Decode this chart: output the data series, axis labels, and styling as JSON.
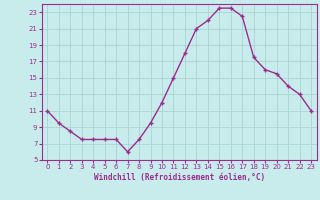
{
  "x": [
    0,
    1,
    2,
    3,
    4,
    5,
    6,
    7,
    8,
    9,
    10,
    11,
    12,
    13,
    14,
    15,
    16,
    17,
    18,
    19,
    20,
    21,
    22,
    23
  ],
  "y": [
    11,
    9.5,
    8.5,
    7.5,
    7.5,
    7.5,
    7.5,
    6,
    7.5,
    9.5,
    12,
    15,
    18,
    21,
    22,
    23.5,
    23.5,
    22.5,
    17.5,
    16,
    15.5,
    14,
    13,
    11
  ],
  "line_color": "#9b2d8e",
  "marker": "+",
  "bg_color": "#c8ecec",
  "grid_color": "#aad4d4",
  "xlabel": "Windchill (Refroidissement éolien,°C)",
  "xlabel_color": "#9b2d8e",
  "tick_color": "#9b2d8e",
  "ylim": [
    5,
    24
  ],
  "xlim": [
    -0.5,
    23.5
  ],
  "yticks": [
    5,
    7,
    9,
    11,
    13,
    15,
    17,
    19,
    21,
    23
  ],
  "xticks": [
    0,
    1,
    2,
    3,
    4,
    5,
    6,
    7,
    8,
    9,
    10,
    11,
    12,
    13,
    14,
    15,
    16,
    17,
    18,
    19,
    20,
    21,
    22,
    23
  ],
  "spine_color": "#9b2d8e",
  "tick_fontsize": 5.0,
  "xlabel_fontsize": 5.5,
  "marker_size": 3.5,
  "line_width": 1.0
}
